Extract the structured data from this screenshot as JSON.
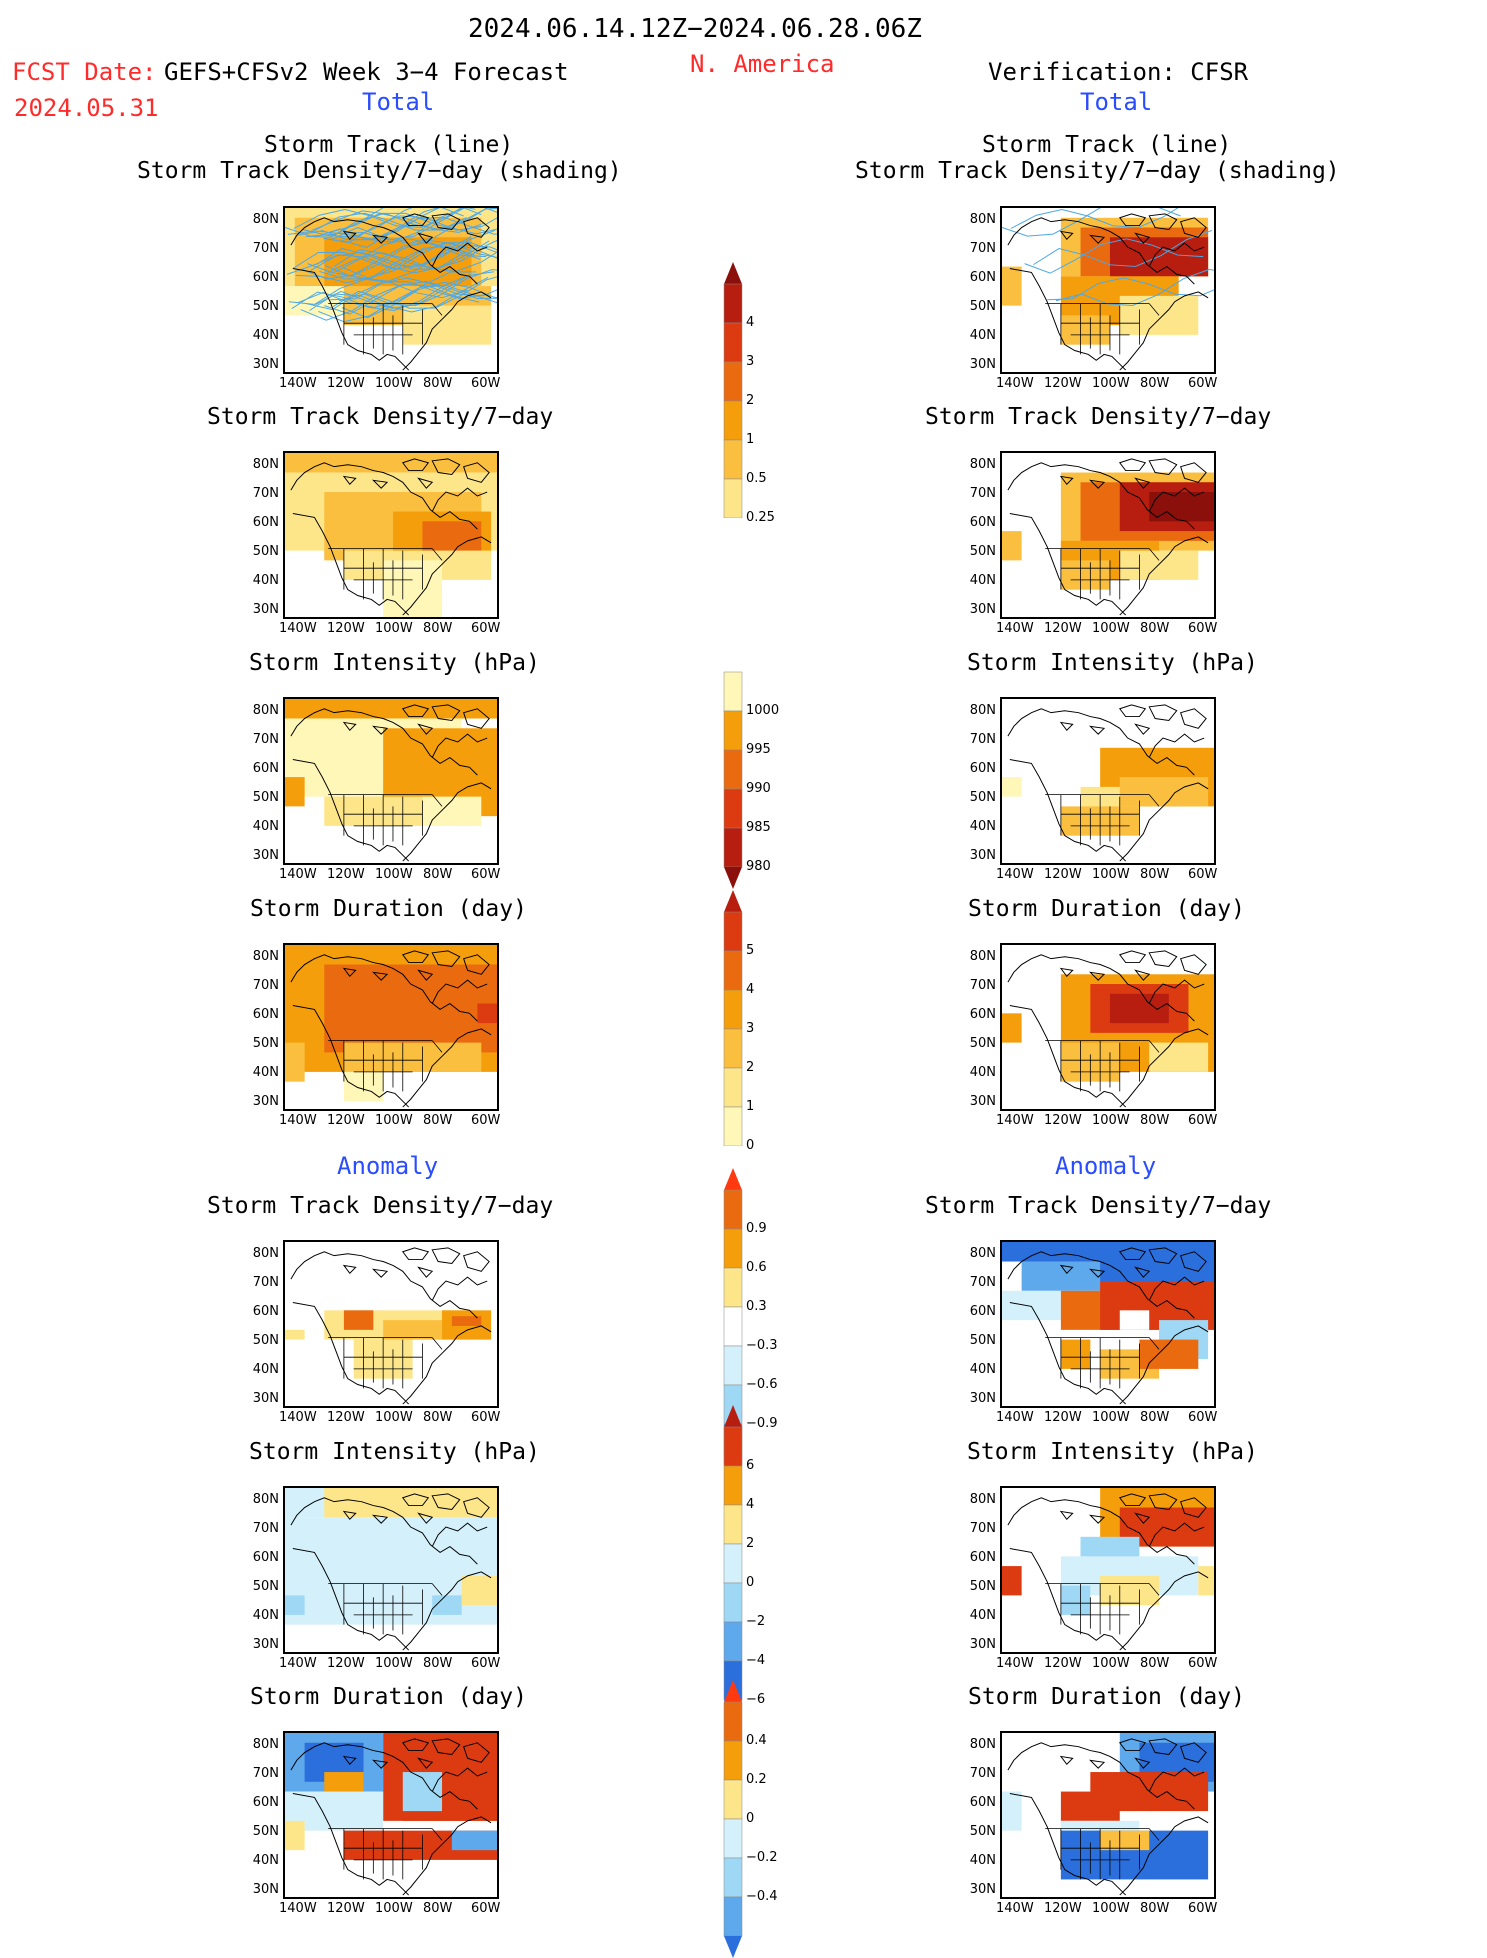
{
  "header": {
    "period": "2024.06.14.12Z−2024.06.28.06Z",
    "fcst_label": "FCST Date:",
    "fcst_date": "2024.05.31",
    "model": "GEFS+CFSv2 Week 3−4 Forecast",
    "region": "N. America",
    "verification": "Verification: CFSR"
  },
  "sections": {
    "total": "Total",
    "anomaly": "Anomaly"
  },
  "panels": {
    "track_line": "Storm Track (line)",
    "track_shading": "Storm Track Density/7−day (shading)",
    "density": "Storm Track Density/7−day",
    "intensity": "Storm Intensity (hPa)",
    "duration": "Storm Duration (day)"
  },
  "axes": {
    "lat": [
      "80N",
      "70N",
      "60N",
      "50N",
      "40N",
      "30N"
    ],
    "lon": [
      "140W",
      "120W",
      "100W",
      "80W",
      "60W"
    ]
  },
  "colorbars": {
    "density": [
      "0.25",
      "0.5",
      "1",
      "2",
      "3",
      "4"
    ],
    "intensity": [
      "1000",
      "995",
      "990",
      "985",
      "980"
    ],
    "duration": [
      "0",
      "1",
      "2",
      "3",
      "4",
      "5"
    ],
    "density_anom": [
      "0.9",
      "0.6",
      "0.3",
      "−0.3",
      "−0.6",
      "−0.9"
    ],
    "intensity_anom": [
      "6",
      "4",
      "2",
      "0",
      "−2",
      "−4",
      "−6"
    ],
    "duration_anom": [
      "0.4",
      "0.2",
      "0",
      "−0.2",
      "−0.4"
    ]
  },
  "colors": {
    "y1": "#fff7b8",
    "y2": "#fde68a",
    "o1": "#fbbf40",
    "o2": "#f59e0b",
    "o3": "#ea6a10",
    "r1": "#dc3a10",
    "r2": "#b81e10",
    "r3": "#8b0f0a",
    "b1": "#d4f1fb",
    "b2": "#9fd8f5",
    "b3": "#5ea8ec",
    "b4": "#2b6fdc",
    "track": "#4aa8e8"
  }
}
